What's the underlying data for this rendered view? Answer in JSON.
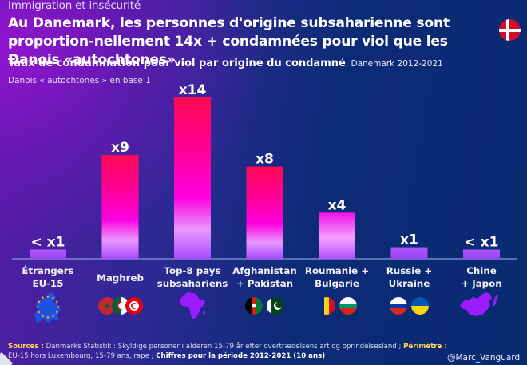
{
  "header": {
    "kicker": "Immigration et insécurité",
    "headline": "Au Danemark, les personnes d'origine subsaharienne sont proportion-nellement 14x + condamnées pour viol que les Danois «autochtones»",
    "flag": "denmark-flag-icon",
    "subtitle_bold": "Taux de condamnation pour viol par origine du condamné",
    "subtitle_rest": ", Danemark 2012-2021",
    "base_note": "Danois « autochtones » en base 1"
  },
  "colors": {
    "bar_top_high": "#ff0a5a",
    "bar_mid": "#ff00d0",
    "bar_bottom": "#b04dff",
    "bar_small": "#a64bff",
    "background_left": "#7a1cc0",
    "background_right": "#0a2a72",
    "sources_highlight": "#ffd75a"
  },
  "chart_data": {
    "type": "bar",
    "title": "Taux de condamnation pour viol par origine du condamné, Danemark 2012-2021",
    "subtitle": "Danois « autochtones » en base 1",
    "xlabel": "",
    "ylabel": "",
    "ylim": [
      0,
      14
    ],
    "grid": false,
    "legend": "none",
    "categories": [
      "Étrangers EU-15",
      "Maghreb",
      "Top-8 pays subsahariens",
      "Afghanistan + Pakistan",
      "Roumanie + Bulgarie",
      "Russie + Ukraine",
      "Chine + Japon"
    ],
    "values": [
      0.8,
      9,
      14,
      8,
      4,
      1,
      0.8
    ],
    "data_labels": [
      "< x1",
      "x9",
      "x14",
      "x8",
      "x4",
      "x1",
      "< x1"
    ],
    "category_lines": [
      [
        "Étrangers",
        "EU-15"
      ],
      [
        "Maghreb"
      ],
      [
        "Top-8 pays",
        "subsahariens"
      ],
      [
        "Afghanistan",
        "+ Pakistan"
      ],
      [
        "Roumanie +",
        "Bulgarie"
      ],
      [
        "Russie +",
        "Ukraine"
      ],
      [
        "Chine",
        "+ Japon"
      ]
    ],
    "category_icons": [
      [
        "eu-map-icon"
      ],
      [
        "morocco-flag-icon",
        "algeria-flag-icon",
        "tunisia-flag-icon"
      ],
      [
        "africa-map-icon"
      ],
      [
        "afghanistan-flag-icon",
        "pakistan-flag-icon"
      ],
      [
        "romania-flag-icon",
        "bulgaria-flag-icon"
      ],
      [
        "russia-flag-icon",
        "ukraine-flag-icon"
      ],
      [
        "china-japan-map-icon"
      ]
    ]
  },
  "footer": {
    "sources_label": "Sources :",
    "sources_text": " Danmarks Statistik : Skyldige personer i alderen 15-79 år efter overtrædelsens art og oprindelsesland ; ",
    "perimeter_label": "Périmètre :",
    "perimeter_text": " EU-15 hors Luxembourg, 15-79 ans, rape ; ",
    "period_text": "Chiffres pour la période 2012-2021 (10 ans)",
    "handle": "@Marc_Vanguard"
  }
}
